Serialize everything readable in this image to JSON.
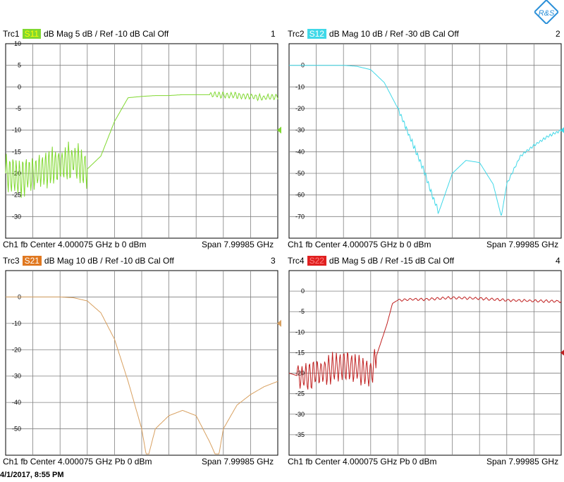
{
  "timestamp": "4/1/2017, 8:55 PM",
  "chart_data": [
    {
      "type": "line",
      "trace": "Trc1",
      "param": "S11",
      "format": "dB Mag",
      "scale": "5 dB /",
      "ref": "Ref -10 dB",
      "cal": "Cal Off",
      "number": "1",
      "color": "#80d830",
      "badge_text_color": "#ffff00",
      "ylim": [
        -35,
        10
      ],
      "yticks": [
        10,
        5,
        0,
        -5,
        -10,
        -15,
        -20,
        -25,
        -30
      ],
      "ref_value": -10,
      "footer_left": "Ch1  fb  Center  4.000075 GHz b   0 dBm",
      "footer_right": "Span  7.99985 GHz",
      "x": [
        0,
        0.05,
        0.1,
        0.15,
        0.2,
        0.25,
        0.3,
        0.35,
        0.4,
        0.45,
        0.5,
        0.55,
        0.6,
        0.65,
        0.7,
        0.75,
        0.8,
        0.85,
        0.9,
        0.95,
        1.0
      ],
      "y": [
        -20,
        -21,
        -20,
        -19,
        -18,
        -17,
        -19,
        -16,
        -8,
        -2.5,
        -2.2,
        -2.0,
        -2.0,
        -1.8,
        -1.8,
        -1.8,
        -1.9,
        -2.0,
        -2.2,
        -2.5,
        -2.2
      ],
      "ripple": {
        "start": 0.0,
        "end": 0.3,
        "amp": 5,
        "period": 0.012
      },
      "tail_ripple": {
        "start": 0.75,
        "end": 1.0,
        "amp": 0.8,
        "period": 0.015
      }
    },
    {
      "type": "line",
      "trace": "Trc2",
      "param": "S12",
      "format": "dB Mag",
      "scale": "10 dB /",
      "ref": "Ref -30 dB",
      "cal": "Cal Off",
      "number": "2",
      "color": "#40d8e8",
      "badge_text_color": "#ffffff",
      "ylim": [
        -80,
        10
      ],
      "yticks": [
        0,
        -10,
        -20,
        -30,
        -40,
        -50,
        -60,
        -70
      ],
      "ref_value": -30,
      "footer_left": "Ch1  fb  Center  4.000075 GHz b   0 dBm",
      "footer_right": "Span  7.99985 GHz",
      "x": [
        0,
        0.1,
        0.2,
        0.25,
        0.3,
        0.35,
        0.4,
        0.45,
        0.5,
        0.52,
        0.55,
        0.6,
        0.65,
        0.7,
        0.75,
        0.78,
        0.8,
        0.85,
        0.9,
        0.95,
        1.0
      ],
      "y": [
        0,
        0,
        0,
        -0.5,
        -2,
        -8,
        -20,
        -35,
        -50,
        -58,
        -68,
        -50,
        -44,
        -45,
        -55,
        -70,
        -55,
        -42,
        -37,
        -33,
        -30
      ],
      "ripple": {
        "start": 0.4,
        "end": 0.55,
        "amp": 1.5,
        "period": 0.01
      },
      "tail_ripple": {
        "start": 0.8,
        "end": 1.0,
        "amp": 0.7,
        "period": 0.012
      }
    },
    {
      "type": "line",
      "trace": "Trc3",
      "param": "S21",
      "format": "dB Mag",
      "scale": "10 dB /",
      "ref": "Ref -10 dB",
      "cal": "Cal Off",
      "number": "3",
      "color": "#d8a060",
      "badge_text_color": "#ffffff",
      "badge_bg": "#e07820",
      "ylim": [
        -60,
        10
      ],
      "yticks": [
        0,
        -10,
        -20,
        -30,
        -40,
        -50
      ],
      "ref_value": -10,
      "footer_left": "Ch1  fb  Center  4.000075 GHz    Pb   0 dBm",
      "footer_right": "Span  7.99985 GHz",
      "x": [
        0,
        0.1,
        0.2,
        0.25,
        0.3,
        0.35,
        0.4,
        0.45,
        0.5,
        0.52,
        0.55,
        0.6,
        0.65,
        0.7,
        0.75,
        0.78,
        0.8,
        0.85,
        0.9,
        0.95,
        1.0
      ],
      "y": [
        0,
        0,
        0,
        -0.3,
        -1.5,
        -6,
        -16,
        -32,
        -50,
        -62,
        -50,
        -45,
        -43,
        -45,
        -55,
        -62,
        -50,
        -41,
        -37,
        -34,
        -32
      ],
      "ripple": null,
      "tail_ripple": null
    },
    {
      "type": "line",
      "trace": "Trc4",
      "param": "S22",
      "format": "dB Mag",
      "scale": "5 dB /",
      "ref": "Ref -15 dB",
      "cal": "Cal Off",
      "number": "4",
      "color": "#c02020",
      "badge_text_color": "#ff8080",
      "badge_bg": "#e02020",
      "ylim": [
        -40,
        5
      ],
      "yticks": [
        0,
        -5,
        -10,
        -15,
        -20,
        -25,
        -30,
        -35
      ],
      "ref_value": -15,
      "footer_left": "Ch1  fb  Center  4.000075 GHz    Pb   0 dBm",
      "footer_right": "Span  7.99985 GHz",
      "x": [
        0,
        0.05,
        0.1,
        0.15,
        0.2,
        0.25,
        0.3,
        0.33,
        0.36,
        0.38,
        0.4,
        0.45,
        0.5,
        0.55,
        0.6,
        0.65,
        0.7,
        0.75,
        0.8,
        0.9,
        1.0
      ],
      "y": [
        -20,
        -21,
        -20,
        -19,
        -18,
        -19,
        -20,
        -14,
        -8,
        -3,
        -2.2,
        -2.0,
        -2.0,
        -1.8,
        -1.6,
        -1.7,
        -1.8,
        -2.0,
        -2.2,
        -2.4,
        -2.5
      ],
      "ripple": {
        "start": 0.03,
        "end": 0.32,
        "amp": 4,
        "period": 0.014
      },
      "tail_ripple": {
        "start": 0.4,
        "end": 1.0,
        "amp": 0.35,
        "period": 0.02
      }
    }
  ]
}
